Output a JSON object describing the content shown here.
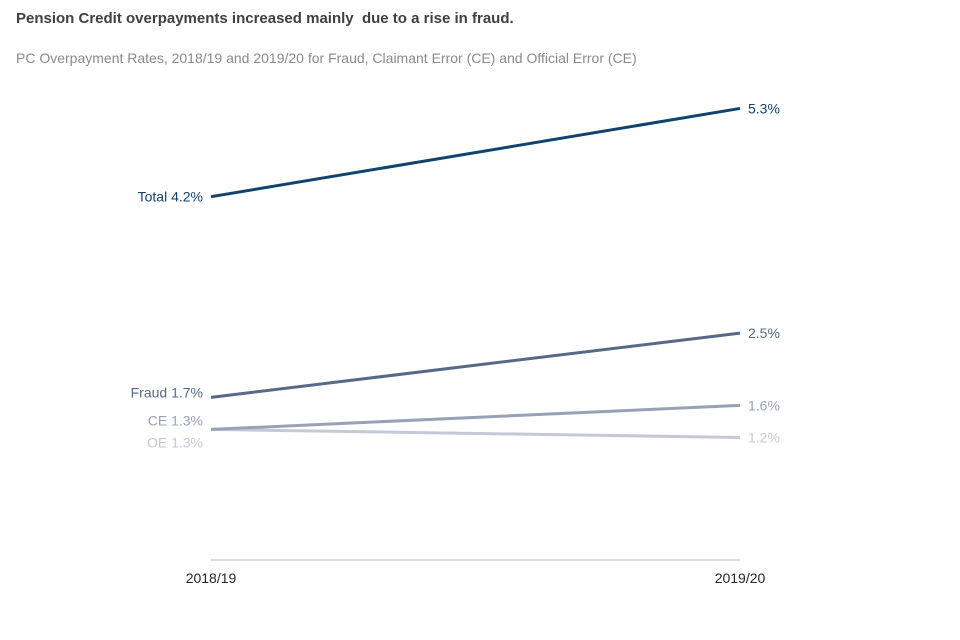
{
  "chart_data": {
    "type": "line",
    "title": "Pension Credit overpayments increased mainly  due to a rise in fraud.",
    "subtitle": "PC Overpayment Rates, 2018/19 and 2019/20 for Fraud, Claimant Error (CE) and Official Error (CE)",
    "categories": [
      "2018/19",
      "2019/20"
    ],
    "xlabel": "",
    "ylabel": "",
    "grid": false,
    "series": [
      {
        "id": "total",
        "name": "Total",
        "values": [
          4.2,
          5.3
        ],
        "start_label": "Total 4.2%",
        "end_label": "5.3%",
        "color": "#12436d"
      },
      {
        "id": "fraud",
        "name": "Fraud",
        "values": [
          1.7,
          2.5
        ],
        "start_label": "Fraud 1.7%",
        "end_label": "2.5%",
        "color": "#566a87"
      },
      {
        "id": "ce",
        "name": "CE",
        "values": [
          1.3,
          1.6
        ],
        "start_label": "CE 1.3%",
        "end_label": "1.6%",
        "color": "#9aa1b7"
      },
      {
        "id": "oe",
        "name": "OE",
        "values": [
          1.3,
          1.2
        ],
        "start_label": "OE 1.3%",
        "end_label": "1.2%",
        "color": "#c5c9d5"
      }
    ]
  }
}
